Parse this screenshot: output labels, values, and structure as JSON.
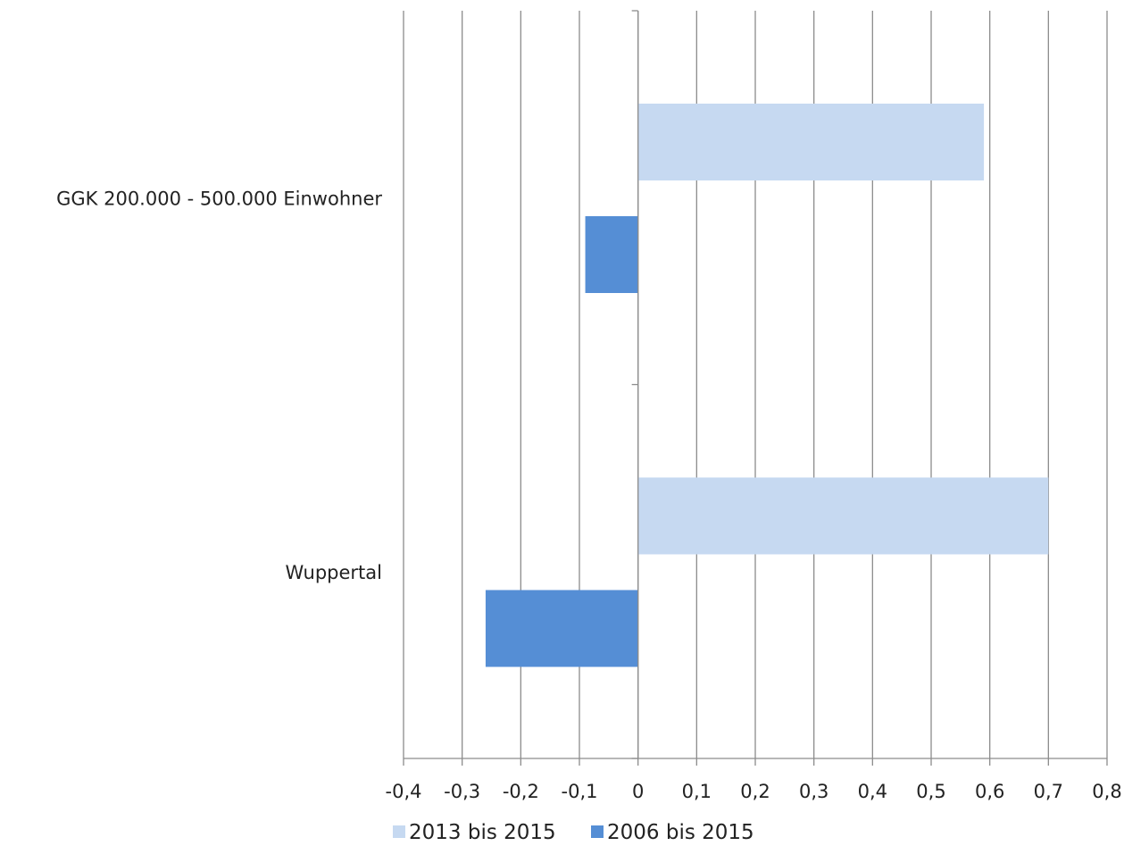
{
  "chart_data": {
    "type": "bar",
    "orientation": "horizontal",
    "categories": [
      "GGK 200.000 - 500.000 Einwohner",
      "Wuppertal"
    ],
    "series": [
      {
        "name": "2013 bis 2015",
        "values": [
          0.59,
          0.7
        ],
        "color": "#c6d9f1"
      },
      {
        "name": "2006 bis 2015",
        "values": [
          -0.09,
          -0.26
        ],
        "color": "#558ed5"
      }
    ],
    "xlim": [
      -0.4,
      0.8
    ],
    "xticks": [
      "-0,4",
      "-0,3",
      "-0,2",
      "-0,1",
      "0",
      "0,1",
      "0,2",
      "0,3",
      "0,4",
      "0,5",
      "0,6",
      "0,7",
      "0,8"
    ],
    "grid": "vertical",
    "legend_position": "bottom",
    "title": "",
    "xlabel": "",
    "ylabel": ""
  }
}
